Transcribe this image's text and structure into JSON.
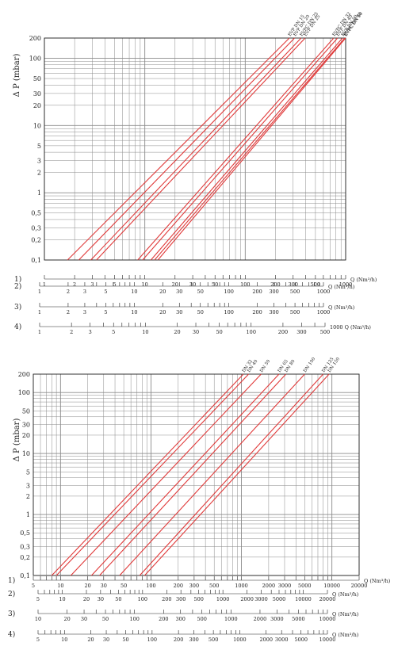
{
  "chart_data": [
    {
      "type": "line",
      "ylabel": "Δ P (mbar)",
      "xlabel": "Q (Nm³/h)",
      "x_scale": "log",
      "y_scale": "log",
      "xlim": [
        1,
        1000
      ],
      "ylim": [
        0.1,
        200
      ],
      "grid": true,
      "y_ticks": [
        "0,1",
        "0,2",
        "0,3",
        "0,5",
        "1",
        "2",
        "3",
        "5",
        "10",
        "20",
        "30",
        "50",
        "100",
        "200"
      ],
      "x_ticks": [
        "1",
        "2",
        "3",
        "5",
        "10",
        "20",
        "30",
        "50",
        "100",
        "200",
        "300",
        "500",
        "1000"
      ],
      "series": [
        {
          "name": "EVP DN 15",
          "x": [
            1.7,
            275
          ],
          "y": [
            0.1,
            200
          ]
        },
        {
          "name": "EVP DN 20",
          "x": [
            2.2,
            310
          ],
          "y": [
            0.1,
            200
          ]
        },
        {
          "name": "EVPC DN 25",
          "x": [
            2.9,
            360
          ],
          "y": [
            0.1,
            200
          ]
        },
        {
          "name": "EVP DN 25",
          "x": [
            3.3,
            395
          ],
          "y": [
            0.1,
            200
          ]
        },
        {
          "name": "EVPC DN 32",
          "x": [
            8.5,
            760
          ],
          "y": [
            0.1,
            200
          ]
        },
        {
          "name": "EVP DN 40",
          "x": [
            9.5,
            830
          ],
          "y": [
            0.1,
            200
          ]
        },
        {
          "name": "EVP DN 50",
          "x": [
            11.5,
            930
          ],
          "y": [
            0.1,
            200
          ]
        },
        {
          "name": "EVPC DN 40",
          "x": [
            12.5,
            980
          ],
          "y": [
            0.1,
            200
          ]
        },
        {
          "name": "EVPC DN 50",
          "x": [
            13.5,
            1000
          ],
          "y": [
            0.1,
            200
          ]
        }
      ],
      "gas_scales": [
        {
          "label": "1)",
          "unit": "Q (Nm³/h)",
          "ticks": [
            "1",
            "2",
            "3",
            "5",
            "10",
            "20",
            "30",
            "50",
            "100",
            "200",
            "300",
            "500",
            "1000"
          ]
        },
        {
          "label": "2)",
          "unit": "Q (Nm³/h)",
          "ticks": [
            "1",
            "2",
            "3",
            "5",
            "10",
            "20",
            "30",
            "50",
            "100",
            "200",
            "300",
            "500",
            "1000"
          ]
        },
        {
          "label": "3)",
          "unit": "Q (Nm³/h)",
          "ticks": [
            "1",
            "2",
            "3",
            "5",
            "10",
            "20",
            "30",
            "50",
            "100",
            "200",
            "300",
            "500",
            "1000"
          ]
        },
        {
          "label": "4)",
          "unit": "1000 Q (Nm³/h)",
          "ticks": [
            "1",
            "2",
            "3",
            "5",
            "10",
            "20",
            "30",
            "50",
            "100",
            "200",
            "300",
            "500"
          ]
        }
      ]
    },
    {
      "type": "line",
      "ylabel": "Δ P (mbar)",
      "xlabel": "Q (Nm³/h)",
      "x_scale": "log",
      "y_scale": "log",
      "xlim": [
        5,
        20000
      ],
      "ylim": [
        0.1,
        200
      ],
      "grid": true,
      "y_ticks": [
        "0,1",
        "0,2",
        "0,3",
        "0,5",
        "1",
        "2",
        "3",
        "5",
        "10",
        "20",
        "30",
        "50",
        "100",
        "200"
      ],
      "x_ticks": [
        "5",
        "10",
        "20",
        "30",
        "50",
        "100",
        "200",
        "300",
        "500",
        "1000",
        "2000",
        "3000",
        "5000",
        "10000",
        "20000"
      ],
      "series": [
        {
          "name": "DN 32",
          "x": [
            8,
            1050
          ],
          "y": [
            0.1,
            200
          ]
        },
        {
          "name": "DN 40",
          "x": [
            9,
            1200
          ],
          "y": [
            0.1,
            200
          ]
        },
        {
          "name": "DN 50",
          "x": [
            13,
            1650
          ],
          "y": [
            0.1,
            200
          ]
        },
        {
          "name": "DN 65",
          "x": [
            22,
            2600
          ],
          "y": [
            0.1,
            200
          ]
        },
        {
          "name": "DN 80",
          "x": [
            27,
            3100
          ],
          "y": [
            0.1,
            200
          ]
        },
        {
          "name": "DN 100",
          "x": [
            45,
            5000
          ],
          "y": [
            0.1,
            200
          ]
        },
        {
          "name": "DN 125",
          "x": [
            75,
            8000
          ],
          "y": [
            0.1,
            200
          ]
        },
        {
          "name": "DN 150",
          "x": [
            85,
            9300
          ],
          "y": [
            0.1,
            200
          ]
        }
      ],
      "gas_scales": [
        {
          "label": "1)",
          "unit": "Q (Nm³/h)",
          "ticks": [
            "5",
            "10",
            "20",
            "30",
            "50",
            "100",
            "200",
            "300",
            "500",
            "1000",
            "2000",
            "3000",
            "5000",
            "10000",
            "20000"
          ]
        },
        {
          "label": "2)",
          "unit": "Q (Nm³/h)",
          "ticks": [
            "5",
            "10",
            "20",
            "30",
            "50",
            "100",
            "200",
            "300",
            "500",
            "1000",
            "2000",
            "3000",
            "5000",
            "10000",
            "20000"
          ]
        },
        {
          "label": "3)",
          "unit": "Q (Nm³/h)",
          "ticks": [
            "10",
            "20",
            "30",
            "50",
            "100",
            "200",
            "300",
            "500",
            "1000",
            "2000",
            "3000",
            "5000",
            "10000"
          ]
        },
        {
          "label": "4)",
          "unit": "Q (Nm³/h)",
          "ticks": [
            "5",
            "10",
            "20",
            "30",
            "50",
            "100",
            "200",
            "300",
            "500",
            "1000",
            "2000",
            "3000",
            "5000",
            "10000"
          ]
        }
      ]
    }
  ],
  "colors": {
    "series": "#e03a3a",
    "grid": "#8a8a8a",
    "axis": "#222222"
  }
}
